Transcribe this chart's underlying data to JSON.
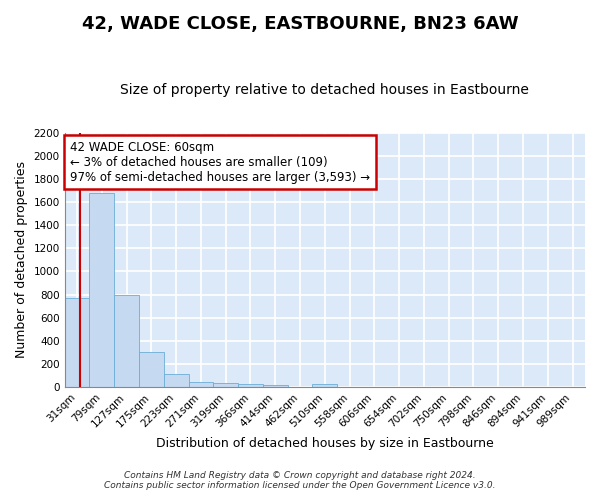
{
  "title": "42, WADE CLOSE, EASTBOURNE, BN23 6AW",
  "subtitle": "Size of property relative to detached houses in Eastbourne",
  "xlabel": "Distribution of detached houses by size in Eastbourne",
  "ylabel": "Number of detached properties",
  "bar_labels": [
    "31sqm",
    "79sqm",
    "127sqm",
    "175sqm",
    "223sqm",
    "271sqm",
    "319sqm",
    "366sqm",
    "414sqm",
    "462sqm",
    "510sqm",
    "558sqm",
    "606sqm",
    "654sqm",
    "702sqm",
    "750sqm",
    "798sqm",
    "846sqm",
    "894sqm",
    "941sqm",
    "989sqm"
  ],
  "bar_heights": [
    770,
    1680,
    800,
    300,
    110,
    40,
    30,
    25,
    20,
    0,
    25,
    0,
    0,
    0,
    0,
    0,
    0,
    0,
    0,
    0,
    0
  ],
  "bar_color": "#c5d9f0",
  "bar_edge_color": "#6baed6",
  "ylim": [
    0,
    2200
  ],
  "yticks": [
    0,
    200,
    400,
    600,
    800,
    1000,
    1200,
    1400,
    1600,
    1800,
    2000,
    2200
  ],
  "annotation_text": "42 WADE CLOSE: 60sqm\n← 3% of detached houses are smaller (109)\n97% of semi-detached houses are larger (3,593) →",
  "annotation_box_color": "#ffffff",
  "annotation_box_edge_color": "#cc0000",
  "bg_color": "#dce9f8",
  "grid_color": "#ffffff",
  "fig_color": "#ffffff",
  "footer_line1": "Contains HM Land Registry data © Crown copyright and database right 2024.",
  "footer_line2": "Contains public sector information licensed under the Open Government Licence v3.0.",
  "title_fontsize": 13,
  "subtitle_fontsize": 10,
  "axis_label_fontsize": 9,
  "tick_fontsize": 7.5,
  "ann_fontsize": 8.5,
  "footer_fontsize": 6.5,
  "red_line_color": "#cc0000",
  "red_line_x": 0.1
}
